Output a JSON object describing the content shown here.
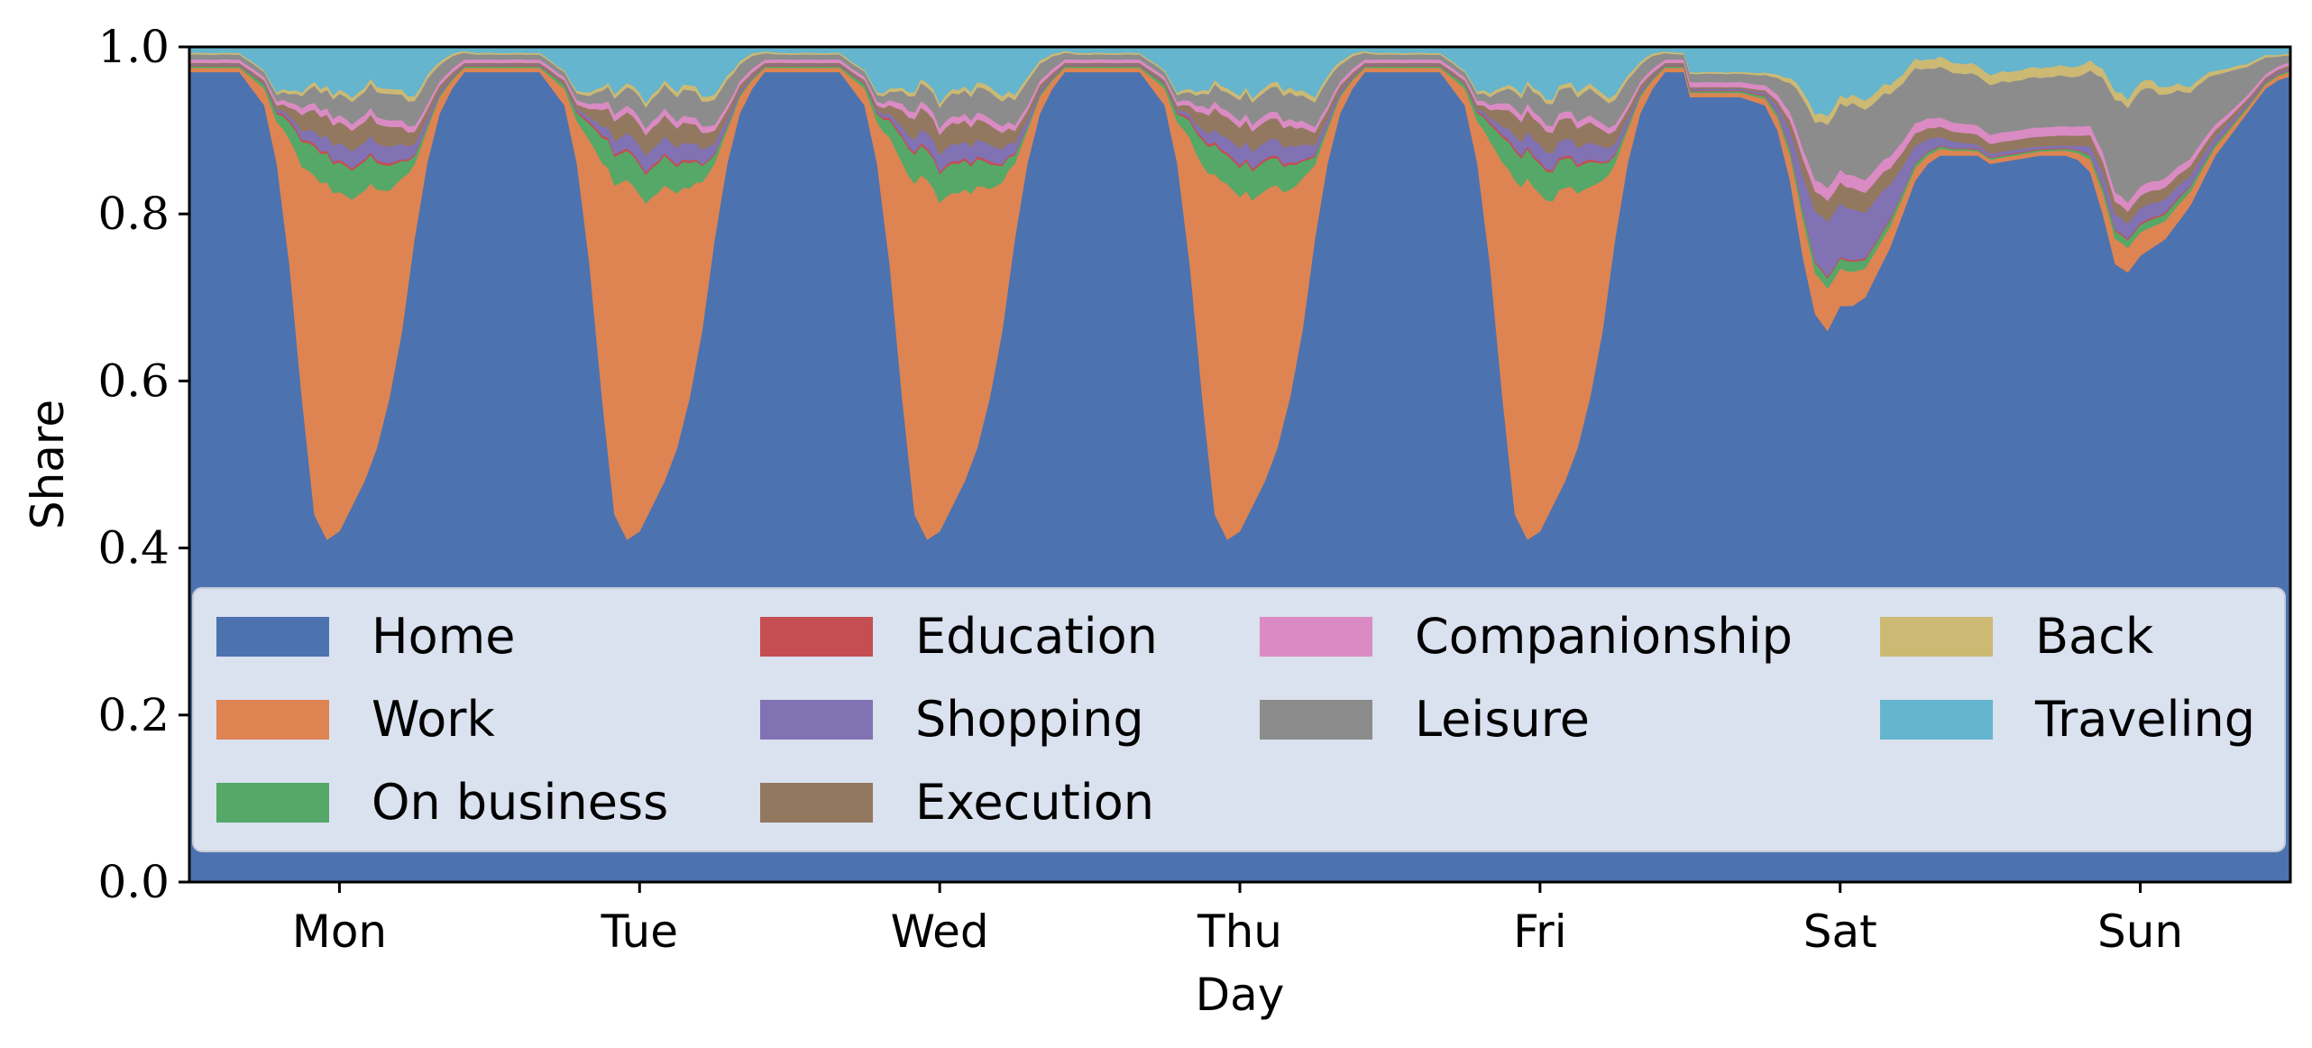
{
  "chart_data": {
    "type": "area",
    "stacked": true,
    "xlabel": "Day",
    "ylabel": "Share",
    "ylim": [
      0,
      1
    ],
    "yticks": [
      "0.0",
      "0.2",
      "0.4",
      "0.6",
      "0.8",
      "1.0"
    ],
    "xticks": [
      "Mon",
      "Tue",
      "Wed",
      "Thu",
      "Fri",
      "Sat",
      "Sun"
    ],
    "x_unit": "hours since start of week",
    "x_range": [
      0,
      168
    ],
    "legend_position": "lower-center",
    "legend_columns": 4,
    "series": [
      {
        "name": "Home",
        "color": "#4c72b0"
      },
      {
        "name": "Work",
        "color": "#dd8452"
      },
      {
        "name": "On business",
        "color": "#55a868"
      },
      {
        "name": "Education",
        "color": "#c44e52"
      },
      {
        "name": "Shopping",
        "color": "#8172b3"
      },
      {
        "name": "Execution",
        "color": "#937860"
      },
      {
        "name": "Companionship",
        "color": "#da8bc3"
      },
      {
        "name": "Leisure",
        "color": "#8c8c8c"
      },
      {
        "name": "Back",
        "color": "#ccb974"
      },
      {
        "name": "Traveling",
        "color": "#64b5cd"
      }
    ],
    "profiles": {
      "weekday": {
        "hours": [
          0,
          2,
          4,
          6,
          7,
          8,
          9,
          10,
          11,
          12,
          13,
          14,
          15,
          16,
          17,
          18,
          19,
          20,
          21,
          22,
          23,
          24
        ],
        "Home": [
          0.97,
          0.97,
          0.97,
          0.93,
          0.86,
          0.74,
          0.58,
          0.44,
          0.41,
          0.42,
          0.45,
          0.48,
          0.52,
          0.58,
          0.66,
          0.77,
          0.86,
          0.92,
          0.95,
          0.97,
          0.97,
          0.97
        ],
        "Work": [
          0.005,
          0.005,
          0.005,
          0.02,
          0.05,
          0.15,
          0.28,
          0.4,
          0.43,
          0.4,
          0.37,
          0.35,
          0.31,
          0.25,
          0.18,
          0.09,
          0.04,
          0.02,
          0.01,
          0.005,
          0.005,
          0.005
        ],
        "On business": [
          0.002,
          0.002,
          0.002,
          0.005,
          0.01,
          0.02,
          0.03,
          0.035,
          0.035,
          0.035,
          0.035,
          0.035,
          0.032,
          0.03,
          0.02,
          0.01,
          0.005,
          0.003,
          0.002,
          0.002,
          0.002,
          0.002
        ],
        "Education": [
          0.001,
          0.001,
          0.001,
          0.001,
          0.002,
          0.003,
          0.003,
          0.003,
          0.003,
          0.003,
          0.003,
          0.003,
          0.003,
          0.003,
          0.002,
          0.002,
          0.001,
          0.001,
          0.001,
          0.001,
          0.001,
          0.001
        ],
        "Shopping": [
          0.001,
          0.001,
          0.001,
          0.001,
          0.003,
          0.005,
          0.01,
          0.015,
          0.018,
          0.02,
          0.02,
          0.02,
          0.02,
          0.02,
          0.018,
          0.012,
          0.008,
          0.004,
          0.002,
          0.001,
          0.001,
          0.001
        ],
        "Execution": [
          0.002,
          0.002,
          0.002,
          0.003,
          0.005,
          0.01,
          0.02,
          0.025,
          0.025,
          0.025,
          0.025,
          0.025,
          0.024,
          0.024,
          0.02,
          0.015,
          0.01,
          0.006,
          0.004,
          0.002,
          0.002,
          0.002
        ],
        "Companionship": [
          0.004,
          0.004,
          0.004,
          0.004,
          0.005,
          0.006,
          0.008,
          0.008,
          0.008,
          0.008,
          0.008,
          0.008,
          0.008,
          0.008,
          0.008,
          0.007,
          0.006,
          0.005,
          0.005,
          0.004,
          0.004,
          0.004
        ],
        "Leisure": [
          0.006,
          0.006,
          0.006,
          0.006,
          0.008,
          0.01,
          0.015,
          0.02,
          0.022,
          0.025,
          0.027,
          0.028,
          0.03,
          0.032,
          0.03,
          0.03,
          0.03,
          0.02,
          0.015,
          0.008,
          0.006,
          0.006
        ],
        "Back": [
          0.002,
          0.002,
          0.002,
          0.002,
          0.003,
          0.004,
          0.004,
          0.005,
          0.005,
          0.005,
          0.005,
          0.005,
          0.006,
          0.006,
          0.006,
          0.006,
          0.005,
          0.004,
          0.003,
          0.002,
          0.002,
          0.002
        ]
      },
      "saturday": {
        "hours": [
          0,
          2,
          4,
          6,
          7,
          8,
          9,
          10,
          11,
          12,
          13,
          14,
          15,
          16,
          17,
          18,
          19,
          20,
          21,
          22,
          23,
          24
        ],
        "Home": [
          0.94,
          0.94,
          0.94,
          0.93,
          0.9,
          0.84,
          0.75,
          0.68,
          0.66,
          0.69,
          0.69,
          0.7,
          0.73,
          0.76,
          0.8,
          0.84,
          0.86,
          0.87,
          0.87,
          0.87,
          0.87,
          0.86
        ],
        "Work": [
          0.005,
          0.005,
          0.005,
          0.008,
          0.015,
          0.03,
          0.045,
          0.05,
          0.05,
          0.045,
          0.04,
          0.035,
          0.03,
          0.025,
          0.02,
          0.015,
          0.01,
          0.008,
          0.006,
          0.006,
          0.005,
          0.005
        ],
        "On business": [
          0.002,
          0.002,
          0.002,
          0.003,
          0.005,
          0.008,
          0.01,
          0.012,
          0.012,
          0.012,
          0.012,
          0.01,
          0.009,
          0.008,
          0.006,
          0.005,
          0.004,
          0.003,
          0.002,
          0.002,
          0.002,
          0.002
        ],
        "Education": [
          0.001,
          0.001,
          0.001,
          0.001,
          0.001,
          0.002,
          0.002,
          0.002,
          0.002,
          0.002,
          0.002,
          0.002,
          0.002,
          0.002,
          0.001,
          0.001,
          0.001,
          0.001,
          0.001,
          0.001,
          0.001,
          0.001
        ],
        "Shopping": [
          0.002,
          0.002,
          0.002,
          0.003,
          0.008,
          0.02,
          0.04,
          0.06,
          0.065,
          0.065,
          0.06,
          0.055,
          0.05,
          0.04,
          0.03,
          0.02,
          0.015,
          0.01,
          0.008,
          0.006,
          0.005,
          0.004
        ],
        "Execution": [
          0.002,
          0.002,
          0.002,
          0.003,
          0.006,
          0.012,
          0.02,
          0.025,
          0.025,
          0.025,
          0.025,
          0.024,
          0.022,
          0.02,
          0.018,
          0.015,
          0.013,
          0.012,
          0.012,
          0.012,
          0.012,
          0.012
        ],
        "Companionship": [
          0.006,
          0.006,
          0.006,
          0.006,
          0.008,
          0.01,
          0.012,
          0.014,
          0.015,
          0.015,
          0.015,
          0.015,
          0.015,
          0.014,
          0.013,
          0.012,
          0.012,
          0.011,
          0.011,
          0.011,
          0.011,
          0.011
        ],
        "Leisure": [
          0.01,
          0.01,
          0.01,
          0.012,
          0.02,
          0.035,
          0.06,
          0.07,
          0.075,
          0.08,
          0.085,
          0.085,
          0.08,
          0.075,
          0.07,
          0.065,
          0.06,
          0.06,
          0.06,
          0.06,
          0.06,
          0.06
        ],
        "Back": [
          0.002,
          0.002,
          0.002,
          0.003,
          0.004,
          0.006,
          0.008,
          0.01,
          0.01,
          0.01,
          0.01,
          0.011,
          0.011,
          0.011,
          0.011,
          0.011,
          0.011,
          0.012,
          0.012,
          0.012,
          0.012,
          0.012
        ]
      },
      "sunday": {
        "hours": [
          0,
          2,
          4,
          6,
          7,
          8,
          9,
          10,
          11,
          12,
          13,
          14,
          15,
          16,
          17,
          18,
          19,
          20,
          21,
          22,
          23,
          24
        ],
        "Home": [
          0.86,
          0.865,
          0.87,
          0.87,
          0.865,
          0.85,
          0.8,
          0.74,
          0.73,
          0.75,
          0.76,
          0.77,
          0.79,
          0.81,
          0.84,
          0.87,
          0.89,
          0.91,
          0.93,
          0.95,
          0.96,
          0.965
        ],
        "Work": [
          0.005,
          0.005,
          0.005,
          0.006,
          0.008,
          0.015,
          0.025,
          0.03,
          0.03,
          0.028,
          0.025,
          0.022,
          0.02,
          0.017,
          0.014,
          0.01,
          0.008,
          0.006,
          0.005,
          0.005,
          0.005,
          0.005
        ],
        "On business": [
          0.002,
          0.002,
          0.002,
          0.002,
          0.003,
          0.005,
          0.008,
          0.009,
          0.009,
          0.009,
          0.009,
          0.008,
          0.007,
          0.006,
          0.005,
          0.004,
          0.003,
          0.003,
          0.002,
          0.002,
          0.002,
          0.002
        ],
        "Education": [
          0.001,
          0.001,
          0.001,
          0.001,
          0.001,
          0.001,
          0.002,
          0.002,
          0.002,
          0.002,
          0.002,
          0.002,
          0.002,
          0.001,
          0.001,
          0.001,
          0.001,
          0.001,
          0.001,
          0.001,
          0.001,
          0.001
        ],
        "Shopping": [
          0.004,
          0.004,
          0.003,
          0.003,
          0.005,
          0.01,
          0.015,
          0.018,
          0.018,
          0.018,
          0.017,
          0.016,
          0.014,
          0.012,
          0.01,
          0.008,
          0.006,
          0.004,
          0.003,
          0.002,
          0.002,
          0.002
        ],
        "Execution": [
          0.012,
          0.012,
          0.012,
          0.012,
          0.012,
          0.013,
          0.014,
          0.015,
          0.015,
          0.015,
          0.015,
          0.014,
          0.013,
          0.012,
          0.01,
          0.008,
          0.006,
          0.005,
          0.004,
          0.003,
          0.003,
          0.003
        ],
        "Companionship": [
          0.011,
          0.011,
          0.011,
          0.011,
          0.011,
          0.011,
          0.011,
          0.011,
          0.011,
          0.011,
          0.011,
          0.011,
          0.01,
          0.009,
          0.008,
          0.007,
          0.006,
          0.005,
          0.005,
          0.004,
          0.004,
          0.004
        ],
        "Leisure": [
          0.06,
          0.06,
          0.06,
          0.06,
          0.06,
          0.065,
          0.09,
          0.11,
          0.115,
          0.115,
          0.11,
          0.1,
          0.09,
          0.08,
          0.07,
          0.06,
          0.05,
          0.04,
          0.03,
          0.02,
          0.012,
          0.008
        ],
        "Back": [
          0.012,
          0.012,
          0.012,
          0.012,
          0.012,
          0.012,
          0.011,
          0.01,
          0.01,
          0.01,
          0.01,
          0.009,
          0.008,
          0.007,
          0.006,
          0.005,
          0.004,
          0.004,
          0.003,
          0.003,
          0.002,
          0.002
        ]
      }
    }
  }
}
